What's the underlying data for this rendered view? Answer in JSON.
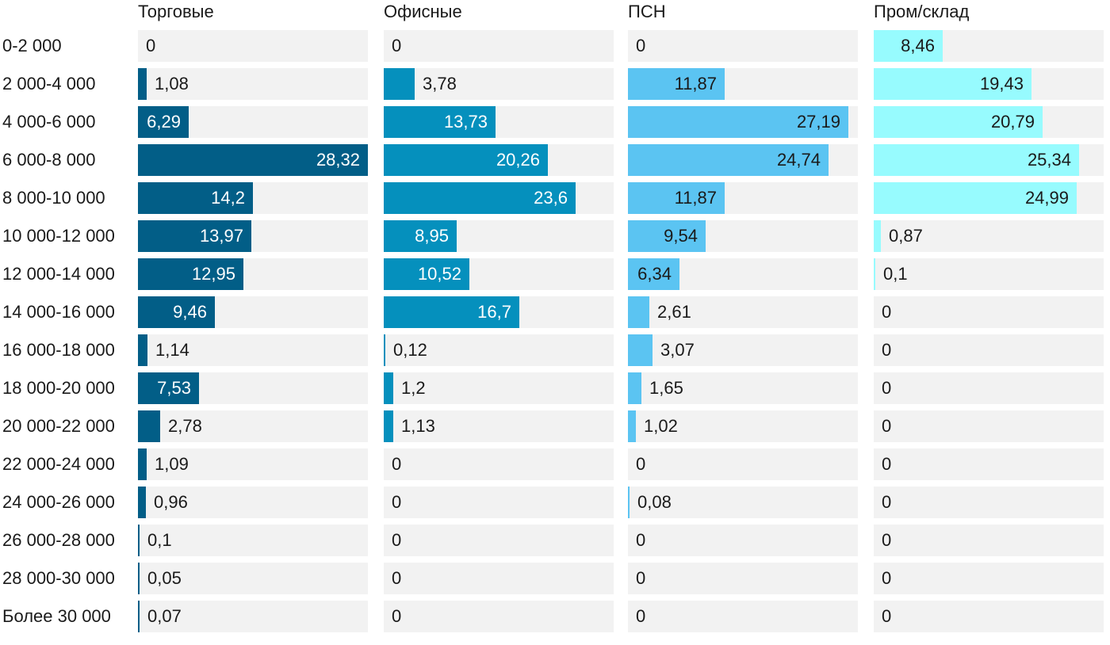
{
  "chart_data": {
    "type": "bar",
    "orientation": "horizontal",
    "layout": "small-multiples",
    "title": "",
    "categories": [
      "0-2 000",
      "2 000-4 000",
      "4 000-6 000",
      "6 000-8 000",
      "8 000-10 000",
      "10 000-12 000",
      "12 000-14 000",
      "14 000-16 000",
      "16 000-18 000",
      "18 000-20 000",
      "20 000-22 000",
      "22 000-24 000",
      "24 000-26 000",
      "26 000-28 000",
      "28 000-30 000",
      "Более 30 000"
    ],
    "xlim": [
      0,
      28.32
    ],
    "grid": false,
    "series": [
      {
        "name": "Торговые",
        "color": "#025e87",
        "label_color": "#ffffff",
        "values": [
          0,
          1.08,
          6.29,
          28.32,
          14.2,
          13.97,
          12.95,
          9.46,
          1.14,
          7.53,
          2.78,
          1.09,
          0.96,
          0.1,
          0.05,
          0.07
        ],
        "labels": [
          "0",
          "1,08",
          "6,29",
          "28,32",
          "14,2",
          "13,97",
          "12,95",
          "9,46",
          "1,14",
          "7,53",
          "2,78",
          "1,09",
          "0,96",
          "0,1",
          "0,05",
          "0,07"
        ]
      },
      {
        "name": "Офисные",
        "color": "#0590bd",
        "label_color": "#ffffff",
        "values": [
          0,
          3.78,
          13.73,
          20.26,
          23.6,
          8.95,
          10.52,
          16.7,
          0.12,
          1.2,
          1.13,
          0,
          0,
          0,
          0,
          0
        ],
        "labels": [
          "0",
          "3,78",
          "13,73",
          "20,26",
          "23,6",
          "8,95",
          "10,52",
          "16,7",
          "0,12",
          "1,2",
          "1,13",
          "0",
          "0",
          "0",
          "0",
          "0"
        ]
      },
      {
        "name": "ПСН",
        "color": "#5bc4f2",
        "label_color": "#1a1a1a",
        "values": [
          0,
          11.87,
          27.19,
          24.74,
          11.87,
          9.54,
          6.34,
          2.61,
          3.07,
          1.65,
          1.02,
          0,
          0.08,
          0,
          0,
          0
        ],
        "labels": [
          "0",
          "11,87",
          "27,19",
          "24,74",
          "11,87",
          "9,54",
          "6,34",
          "2,61",
          "3,07",
          "1,65",
          "1,02",
          "0",
          "0,08",
          "0",
          "0",
          "0"
        ]
      },
      {
        "name": "Пром/склад",
        "color": "#97fbfe",
        "label_color": "#1a1a1a",
        "values": [
          8.46,
          19.43,
          20.79,
          25.34,
          24.99,
          0.87,
          0.1,
          0,
          0,
          0,
          0,
          0,
          0,
          0,
          0,
          0
        ],
        "labels": [
          "8,46",
          "19,43",
          "20,79",
          "25,34",
          "24,99",
          "0,87",
          "0,1",
          "0",
          "0",
          "0",
          "0",
          "0",
          "0",
          "0",
          "0",
          "0"
        ]
      }
    ]
  }
}
